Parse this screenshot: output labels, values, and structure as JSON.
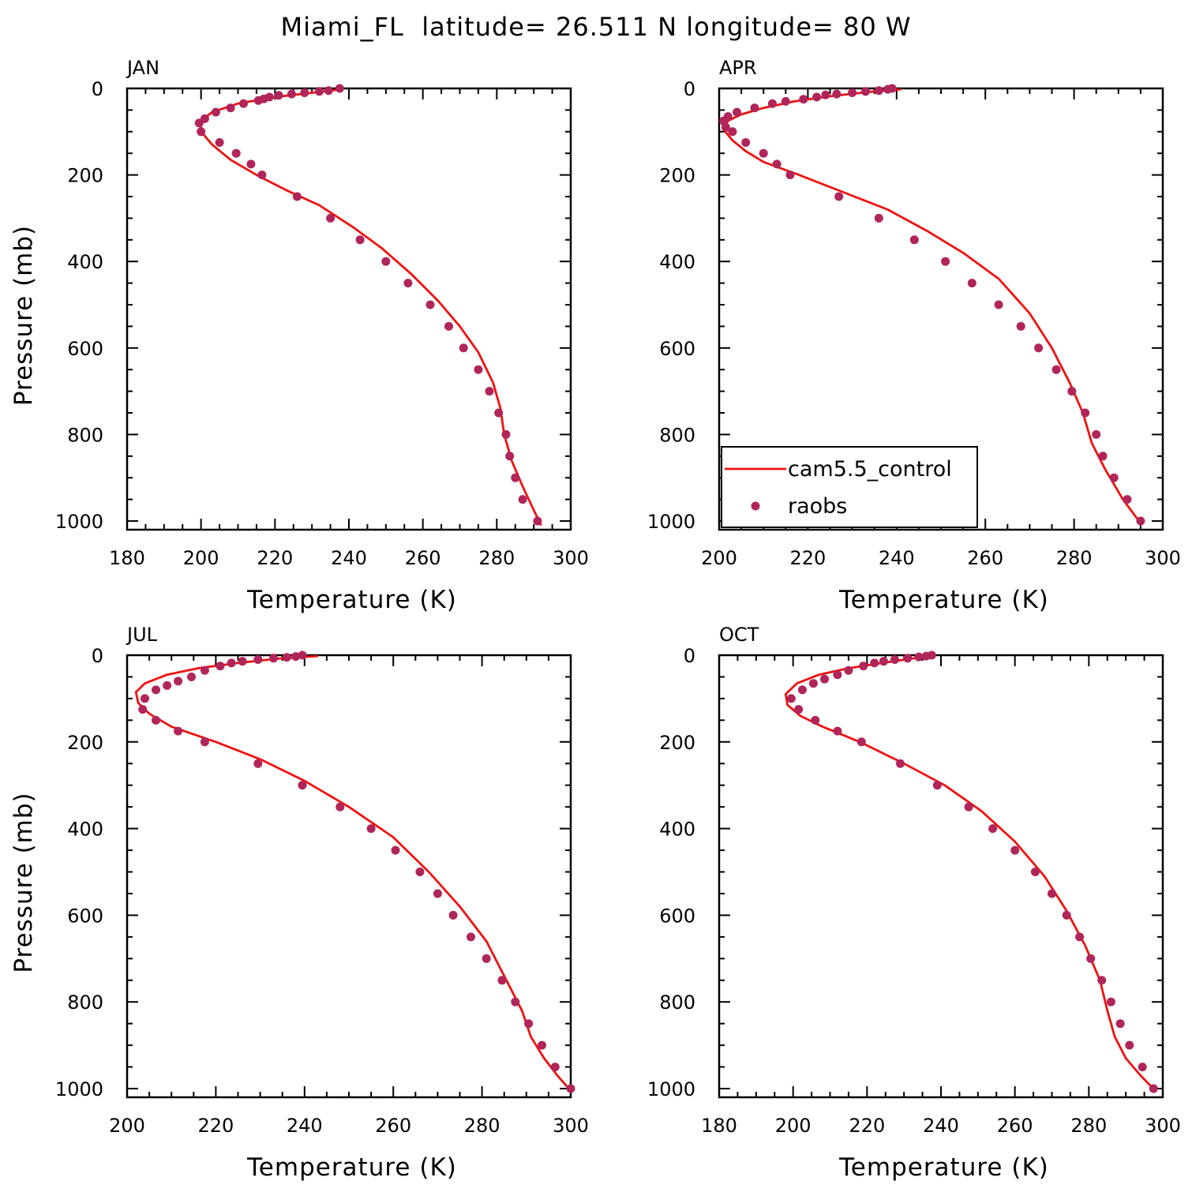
{
  "title": "Miami_FL  latitude= 26.511 N longitude= 80 W",
  "colors": {
    "model": "#ee1111",
    "obs": "#b0255a"
  },
  "legend": {
    "panel_index": 1,
    "placement": "lower-left",
    "entries": [
      {
        "label": "cam5.5_control",
        "kind": "line"
      },
      {
        "label": "raobs",
        "kind": "marker"
      }
    ]
  },
  "chart_data": [
    {
      "type": "line",
      "panel": "JAN",
      "xlabel": "Temperature (K)",
      "ylabel": "Pressure (mb)",
      "xlim": [
        180,
        300
      ],
      "ylim": [
        0,
        1020
      ],
      "y_inverted": true,
      "xticks": [
        180,
        200,
        220,
        240,
        260,
        280,
        300
      ],
      "yticks": [
        0,
        200,
        400,
        600,
        800,
        1000
      ],
      "series": [
        {
          "name": "cam5.5_control",
          "style": "line",
          "x": [
            238,
            230,
            220,
            210,
            203,
            200,
            200,
            203,
            208,
            215,
            223,
            232,
            241,
            249,
            257,
            264,
            270,
            275,
            279,
            281,
            282,
            284,
            287,
            290,
            292
          ],
          "y": [
            2,
            10,
            20,
            35,
            55,
            75,
            100,
            130,
            165,
            200,
            235,
            270,
            320,
            370,
            430,
            490,
            550,
            610,
            680,
            740,
            800,
            860,
            920,
            975,
            1010
          ]
        },
        {
          "name": "raobs",
          "style": "marker",
          "x": [
            237.5,
            234.5,
            232,
            228,
            224.5,
            221,
            218.5,
            217,
            215.5,
            211.5,
            208,
            204,
            201,
            199.5,
            200,
            205,
            209.5,
            213.5,
            216.5,
            226,
            235,
            243,
            250,
            256,
            262,
            267,
            271,
            275,
            278,
            280.5,
            282.5,
            283.5,
            285,
            287,
            291
          ],
          "y": [
            0,
            5,
            7,
            10,
            13,
            16,
            20,
            24,
            28,
            35,
            45,
            55,
            70,
            80,
            100,
            125,
            150,
            175,
            200,
            250,
            300,
            350,
            400,
            450,
            500,
            550,
            600,
            650,
            700,
            750,
            800,
            850,
            900,
            950,
            1000
          ]
        }
      ]
    },
    {
      "type": "line",
      "panel": "APR",
      "xlabel": "Temperature (K)",
      "ylabel": "",
      "xlim": [
        200,
        300
      ],
      "ylim": [
        0,
        1020
      ],
      "y_inverted": true,
      "xticks": [
        200,
        220,
        240,
        260,
        280,
        300
      ],
      "yticks": [
        0,
        200,
        400,
        600,
        800,
        1000
      ],
      "series": [
        {
          "name": "cam5.5_control",
          "style": "line",
          "x": [
            241,
            234,
            225,
            217,
            210,
            205,
            202,
            201,
            203,
            206,
            210,
            218,
            228,
            238,
            247,
            255,
            263,
            270,
            275,
            279,
            282,
            284,
            287,
            291,
            295
          ],
          "y": [
            2,
            8,
            18,
            30,
            45,
            60,
            75,
            95,
            120,
            145,
            170,
            200,
            240,
            280,
            330,
            380,
            440,
            520,
            600,
            680,
            750,
            820,
            880,
            950,
            1005
          ]
        },
        {
          "name": "raobs",
          "style": "marker",
          "x": [
            239,
            238,
            236,
            233,
            230,
            226.5,
            224,
            222,
            219,
            215,
            212,
            208,
            204,
            202,
            201,
            201.5,
            203,
            206,
            210,
            213,
            216,
            227,
            236,
            244,
            251,
            257,
            263,
            268,
            272,
            276,
            279.5,
            282.5,
            285,
            286.5,
            289,
            292,
            295
          ],
          "y": [
            0,
            2,
            5,
            7,
            10,
            13,
            15,
            20,
            25,
            30,
            35,
            45,
            55,
            65,
            75,
            90,
            100,
            125,
            150,
            175,
            200,
            250,
            300,
            350,
            400,
            450,
            500,
            550,
            600,
            650,
            700,
            750,
            800,
            850,
            900,
            950,
            1000
          ]
        }
      ]
    },
    {
      "type": "line",
      "panel": "JUL",
      "xlabel": "Temperature (K)",
      "ylabel": "Pressure (mb)",
      "xlim": [
        200,
        300
      ],
      "ylim": [
        0,
        1020
      ],
      "y_inverted": true,
      "xticks": [
        200,
        220,
        240,
        260,
        280,
        300
      ],
      "yticks": [
        0,
        200,
        400,
        600,
        800,
        1000
      ],
      "series": [
        {
          "name": "cam5.5_control",
          "style": "line",
          "x": [
            243,
            234,
            225,
            216,
            209,
            204,
            202,
            202.5,
            205,
            210,
            220,
            230,
            240,
            250,
            260,
            268,
            275,
            281,
            285,
            289,
            291,
            294,
            297,
            300
          ],
          "y": [
            2,
            8,
            18,
            30,
            45,
            65,
            85,
            110,
            135,
            165,
            200,
            240,
            290,
            350,
            420,
            500,
            580,
            660,
            740,
            820,
            880,
            930,
            970,
            1005
          ]
        },
        {
          "name": "raobs",
          "style": "marker",
          "x": [
            239.5,
            238,
            236,
            233,
            229.5,
            226,
            223.5,
            221,
            217.5,
            214.5,
            211.5,
            209,
            206.5,
            204,
            203.5,
            206.5,
            211.5,
            217.5,
            229.5,
            239.5,
            248,
            255,
            260.5,
            266,
            270,
            273.5,
            277.5,
            281,
            284.5,
            287.5,
            290.5,
            293.5,
            296.5,
            300
          ],
          "y": [
            0,
            3,
            5,
            7,
            10,
            14,
            18,
            25,
            35,
            50,
            60,
            70,
            80,
            100,
            125,
            150,
            175,
            200,
            250,
            300,
            350,
            400,
            450,
            500,
            550,
            600,
            650,
            700,
            750,
            800,
            850,
            900,
            950,
            1000
          ]
        }
      ]
    },
    {
      "type": "line",
      "panel": "OCT",
      "xlabel": "Temperature (K)",
      "ylabel": "",
      "xlim": [
        180,
        300
      ],
      "ylim": [
        0,
        1020
      ],
      "y_inverted": true,
      "xticks": [
        180,
        200,
        220,
        240,
        260,
        280,
        300
      ],
      "yticks": [
        0,
        200,
        400,
        600,
        800,
        1000
      ],
      "series": [
        {
          "name": "cam5.5_control",
          "style": "line",
          "x": [
            238,
            232,
            224,
            215,
            207,
            201,
            198,
            198.5,
            202,
            208,
            218,
            230,
            241,
            251,
            260,
            268,
            274,
            279,
            283,
            285,
            287,
            290,
            294,
            298
          ],
          "y": [
            2,
            8,
            18,
            30,
            45,
            65,
            90,
            115,
            140,
            165,
            200,
            250,
            300,
            360,
            430,
            510,
            590,
            670,
            750,
            820,
            880,
            930,
            970,
            1005
          ]
        },
        {
          "name": "raobs",
          "style": "marker",
          "x": [
            237.5,
            236,
            234,
            231,
            227.5,
            224.5,
            222,
            219,
            215,
            212,
            208.5,
            205.5,
            202.5,
            199.5,
            201.5,
            206,
            212,
            218.5,
            229,
            239,
            247.5,
            254,
            260,
            265.5,
            270,
            274,
            277.5,
            280.5,
            283.5,
            286,
            288.5,
            291,
            294.5,
            297.5
          ],
          "y": [
            0,
            2,
            4,
            7,
            10,
            14,
            18,
            25,
            35,
            45,
            55,
            65,
            80,
            100,
            125,
            150,
            175,
            200,
            250,
            300,
            350,
            400,
            450,
            500,
            550,
            600,
            650,
            700,
            750,
            800,
            850,
            900,
            950,
            1000
          ]
        }
      ]
    }
  ]
}
